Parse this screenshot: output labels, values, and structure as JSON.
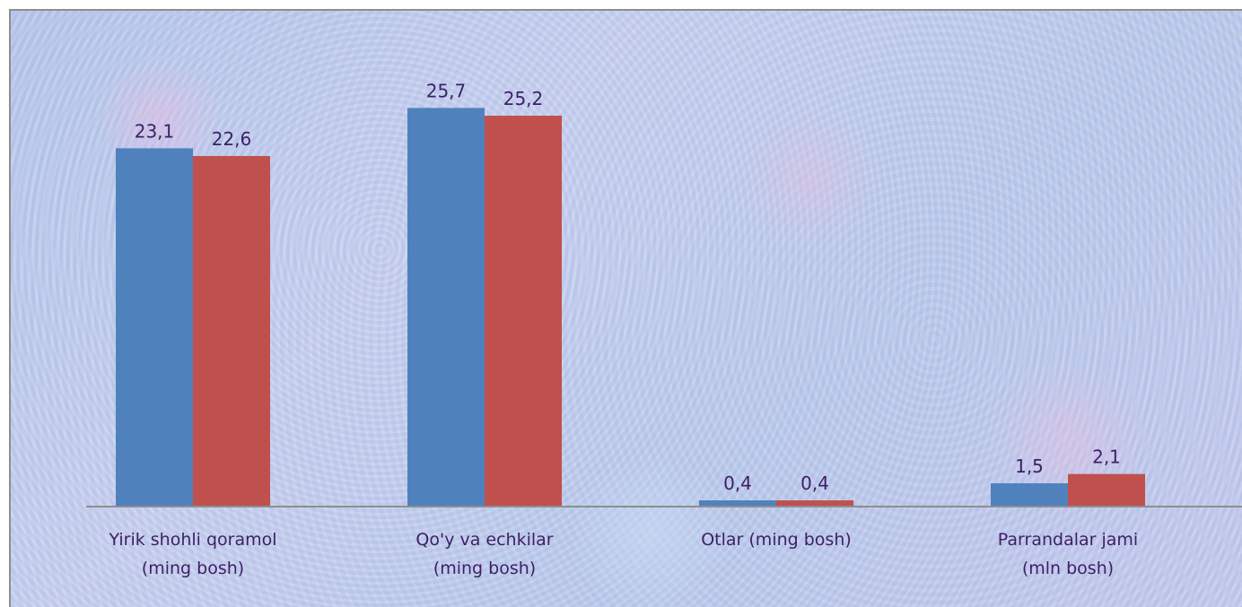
{
  "chart_data": {
    "type": "bar",
    "categories": [
      [
        "Yirik shohli qoramol",
        "(ming bosh)"
      ],
      [
        "Qo'y va echkilar",
        "(ming bosh)"
      ],
      [
        "Otlar (ming bosh)"
      ],
      [
        "Parrandalar jami",
        "(mln bosh)"
      ]
    ],
    "series": [
      {
        "values": [
          23.1,
          25.7,
          0.4,
          1.5
        ],
        "labels": [
          "23,1",
          "25,7",
          "0,4",
          "1,5"
        ],
        "color": "#4f81bd"
      },
      {
        "values": [
          22.6,
          25.2,
          0.4,
          2.1
        ],
        "labels": [
          "22,6",
          "25,2",
          "0,4",
          "2,1"
        ],
        "color": "#c0504d"
      }
    ],
    "ylim": [
      0,
      30
    ],
    "grid": false,
    "legend": "none",
    "axis_color": "#8e8e8e",
    "label_color": "#3d1f66"
  }
}
